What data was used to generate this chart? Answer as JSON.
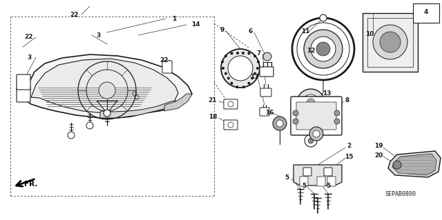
{
  "bg_color": "#ffffff",
  "line_color": "#1a1a1a",
  "diagram_code": "SEPAB0800",
  "figsize": [
    6.4,
    3.19
  ],
  "dpi": 100
}
